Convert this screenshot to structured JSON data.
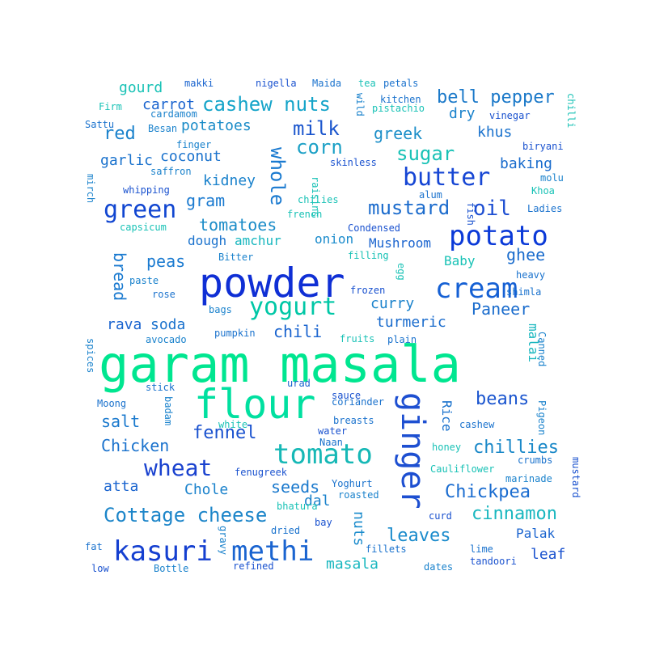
{
  "words": [
    {
      "text": "garam masala",
      "color": "#00e690"
    },
    {
      "text": "powder",
      "color": "#0f2fd5"
    },
    {
      "text": "flour",
      "color": "#00e0a0"
    },
    {
      "text": "potato",
      "color": "#0b3ad8"
    },
    {
      "text": "cream",
      "color": "#1560d4"
    },
    {
      "text": "ginger",
      "color": "#1d4fd1"
    },
    {
      "text": "tomato",
      "color": "#16b8b6"
    },
    {
      "text": "yogurt",
      "color": "#00c7a6"
    },
    {
      "text": "kasuri",
      "color": "#143fd0"
    },
    {
      "text": "methi",
      "color": "#1a64d0"
    },
    {
      "text": "butter",
      "color": "#1646d4"
    },
    {
      "text": "green",
      "color": "#1146d1"
    },
    {
      "text": "cashew nuts",
      "color": "#15a4c9"
    },
    {
      "text": "Cottage cheese",
      "color": "#1c85c9"
    },
    {
      "text": "wheat",
      "color": "#1a42cf"
    },
    {
      "text": "whole",
      "color": "#1a7ad0"
    },
    {
      "text": "milk",
      "color": "#1a55cd"
    },
    {
      "text": "corn",
      "color": "#1ba0c6"
    },
    {
      "text": "oil",
      "color": "#1d4ed2"
    },
    {
      "text": "mustard",
      "color": "#1c6ccd"
    },
    {
      "text": "bell pepper",
      "color": "#1b79c9"
    },
    {
      "text": "sugar",
      "color": "#19c2b6"
    },
    {
      "text": "greek",
      "color": "#1b8ec8"
    },
    {
      "text": "Chickpea",
      "color": "#1a6cd0"
    },
    {
      "text": "chillies",
      "color": "#1a88c8"
    },
    {
      "text": "cinnamon",
      "color": "#19b7bf"
    },
    {
      "text": "beans",
      "color": "#1a55cf"
    },
    {
      "text": "leaves",
      "color": "#1a8bcc"
    },
    {
      "text": "fennel",
      "color": "#1a52cf"
    },
    {
      "text": "Chicken",
      "color": "#1a72cd"
    },
    {
      "text": "tomatoes",
      "color": "#1b8cc8"
    },
    {
      "text": "seeds",
      "color": "#1a79cd"
    },
    {
      "text": "chili",
      "color": "#1a64cf"
    },
    {
      "text": "ghee",
      "color": "#1a6ccd"
    },
    {
      "text": "Paneer",
      "color": "#1a6ccd"
    },
    {
      "text": "red",
      "color": "#1a82cc"
    },
    {
      "text": "gram",
      "color": "#1a7ad0"
    },
    {
      "text": "salt",
      "color": "#1a79cd"
    },
    {
      "text": "peas",
      "color": "#1a7ad0"
    },
    {
      "text": "bread",
      "color": "#1a7ad0"
    },
    {
      "text": "nuts",
      "color": "#1a8bcc"
    },
    {
      "text": "masala",
      "color": "#19b7bf"
    },
    {
      "text": "baking",
      "color": "#1a6ccd"
    },
    {
      "text": "curry",
      "color": "#1a82cc"
    },
    {
      "text": "onion",
      "color": "#1a8bcc"
    },
    {
      "text": "kidney",
      "color": "#1a82cc"
    },
    {
      "text": "garlic",
      "color": "#1a72cd"
    },
    {
      "text": "coconut",
      "color": "#1a72cd"
    },
    {
      "text": "carrot",
      "color": "#1a64cf"
    },
    {
      "text": "potatoes",
      "color": "#1b8cc8"
    },
    {
      "text": "dough",
      "color": "#1a72cd"
    },
    {
      "text": "amchur",
      "color": "#19b7bf"
    },
    {
      "text": "turmeric",
      "color": "#1a6ccd"
    },
    {
      "text": "soda",
      "color": "#1a72cd"
    },
    {
      "text": "rava",
      "color": "#1a64cf"
    },
    {
      "text": "khus",
      "color": "#1a72cd"
    },
    {
      "text": "dry",
      "color": "#1a82cc"
    },
    {
      "text": "gourd",
      "color": "#19c2b6"
    },
    {
      "text": "atta",
      "color": "#1a64cf"
    },
    {
      "text": "Chole",
      "color": "#1a82cc"
    },
    {
      "text": "dal",
      "color": "#1a82cc"
    },
    {
      "text": "leaf",
      "color": "#1a52cf"
    },
    {
      "text": "Palak",
      "color": "#1a64cf"
    },
    {
      "text": "Mushroom",
      "color": "#1a64cf"
    },
    {
      "text": "Baby",
      "color": "#19c2b6"
    },
    {
      "text": "malai",
      "color": "#19b7bf"
    },
    {
      "text": "Rice",
      "color": "#1a72cd"
    },
    {
      "text": "makki",
      "color": "#1a64cf"
    },
    {
      "text": "nigella",
      "color": "#1a52cf"
    },
    {
      "text": "Maida",
      "color": "#1a72cd"
    },
    {
      "text": "tea",
      "color": "#19c2b6"
    },
    {
      "text": "petals",
      "color": "#1a72cd"
    },
    {
      "text": "Firm",
      "color": "#19c2b6"
    },
    {
      "text": "cardamom",
      "color": "#1a82cc"
    },
    {
      "text": "Sattu",
      "color": "#1a72cd"
    },
    {
      "text": "Besan",
      "color": "#1a82cc"
    },
    {
      "text": "finger",
      "color": "#1a82cc"
    },
    {
      "text": "saffron",
      "color": "#1a82cc"
    },
    {
      "text": "whipping",
      "color": "#1a52cf"
    },
    {
      "text": "mirch",
      "color": "#1a82cc"
    },
    {
      "text": "capsicum",
      "color": "#19c2b6"
    },
    {
      "text": "Bitter",
      "color": "#1a82cc"
    },
    {
      "text": "paste",
      "color": "#1a82cc"
    },
    {
      "text": "rose",
      "color": "#1a72cd"
    },
    {
      "text": "bags",
      "color": "#1a82cc"
    },
    {
      "text": "pumpkin",
      "color": "#1a72cd"
    },
    {
      "text": "avocado",
      "color": "#1a82cc"
    },
    {
      "text": "spices",
      "color": "#1a82cc"
    },
    {
      "text": "stick",
      "color": "#1a72cd"
    },
    {
      "text": "urad",
      "color": "#1a64cf"
    },
    {
      "text": "Moong",
      "color": "#1a72cd"
    },
    {
      "text": "badam",
      "color": "#1a82cc"
    },
    {
      "text": "white",
      "color": "#19c2b6"
    },
    {
      "text": "sauce",
      "color": "#1a52cf"
    },
    {
      "text": "coriander",
      "color": "#1a72cd"
    },
    {
      "text": "breasts",
      "color": "#1a72cd"
    },
    {
      "text": "water",
      "color": "#1a52cf"
    },
    {
      "text": "Naan",
      "color": "#1a72cd"
    },
    {
      "text": "fenugreek",
      "color": "#1a52cf"
    },
    {
      "text": "Yoghurt",
      "color": "#1a72cd"
    },
    {
      "text": "roasted",
      "color": "#1a82cc"
    },
    {
      "text": "bhatura",
      "color": "#19c2b6"
    },
    {
      "text": "bay",
      "color": "#1a52cf"
    },
    {
      "text": "dried",
      "color": "#1a72cd"
    },
    {
      "text": "gravy",
      "color": "#1a82cc"
    },
    {
      "text": "fat",
      "color": "#1a72cd"
    },
    {
      "text": "low",
      "color": "#1a52cf"
    },
    {
      "text": "Bottle",
      "color": "#1a82cc"
    },
    {
      "text": "refined",
      "color": "#1a52cf"
    },
    {
      "text": "fillets",
      "color": "#1a72cd"
    },
    {
      "text": "dates",
      "color": "#1a82cc"
    },
    {
      "text": "lime",
      "color": "#1a72cd"
    },
    {
      "text": "tandoori",
      "color": "#1a52cf"
    },
    {
      "text": "curd",
      "color": "#1a52cf"
    },
    {
      "text": "mustard",
      "color": "#1a52cf"
    },
    {
      "text": "marinade",
      "color": "#1a82cc"
    },
    {
      "text": "crumbs",
      "color": "#1a72cd"
    },
    {
      "text": "Cauliflower",
      "color": "#19c2b6"
    },
    {
      "text": "honey",
      "color": "#19c2b6"
    },
    {
      "text": "cashew",
      "color": "#1a72cd"
    },
    {
      "text": "Pigeon",
      "color": "#1a82cc"
    },
    {
      "text": "Canned",
      "color": "#1a82cc"
    },
    {
      "text": "fruits",
      "color": "#19c2b6"
    },
    {
      "text": "plain",
      "color": "#1a72cd"
    },
    {
      "text": "frozen",
      "color": "#1a52cf"
    },
    {
      "text": "shimla",
      "color": "#1a72cd"
    },
    {
      "text": "heavy",
      "color": "#1a72cd"
    },
    {
      "text": "egg",
      "color": "#19c2b6"
    },
    {
      "text": "filling",
      "color": "#19c2b6"
    },
    {
      "text": "Condensed",
      "color": "#1a52cf"
    },
    {
      "text": "Ladies",
      "color": "#1a72cd"
    },
    {
      "text": "fish",
      "color": "#1a52cf"
    },
    {
      "text": "alum",
      "color": "#1a72cd"
    },
    {
      "text": "french",
      "color": "#19c2b6"
    },
    {
      "text": "chilies",
      "color": "#19c2b6"
    },
    {
      "text": "raisins",
      "color": "#19c2b6"
    },
    {
      "text": "skinless",
      "color": "#1a52cf"
    },
    {
      "text": "Khoa",
      "color": "#19c2b6"
    },
    {
      "text": "molu",
      "color": "#1a82cc"
    },
    {
      "text": "biryani",
      "color": "#1a52cf"
    },
    {
      "text": "chilli",
      "color": "#19c2b6"
    },
    {
      "text": "vinegar",
      "color": "#1a52cf"
    },
    {
      "text": "kitchen",
      "color": "#1a72cd"
    },
    {
      "text": "pistachio",
      "color": "#19c2b6"
    },
    {
      "text": "wild",
      "color": "#1a82cc"
    }
  ]
}
